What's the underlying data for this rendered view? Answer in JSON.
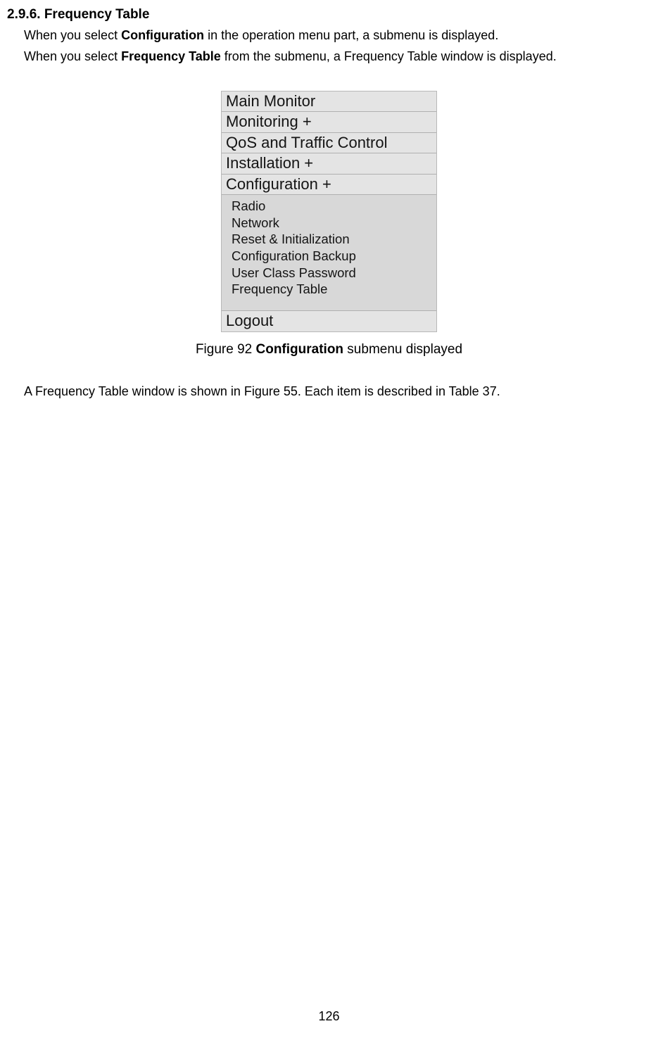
{
  "section": {
    "heading": "2.9.6. Frequency Table",
    "line1_pre": "When you select ",
    "line1_bold": "Configuration",
    "line1_post": " in the operation menu part, a submenu is displayed.",
    "line2_pre": "When you select ",
    "line2_bold": "Frequency Table",
    "line2_post": " from the submenu, a Frequency Table window is displayed."
  },
  "menu": {
    "items_top": [
      "Main Monitor",
      "Monitoring +",
      "QoS and Traffic Control",
      "Installation +",
      "Configuration +"
    ],
    "submenu": [
      "Radio",
      "Network",
      "Reset & Initialization",
      "Configuration Backup",
      "User Class Password",
      "Frequency Table"
    ],
    "logout": "Logout"
  },
  "caption": {
    "pre": "Figure 92 ",
    "bold": "Configuration",
    "post": " submenu displayed"
  },
  "follow": "A Frequency Table window is shown in Figure 55. Each item is described in Table 37.",
  "page_number": "126",
  "colors": {
    "menu_bg": "#e4e4e4",
    "submenu_bg": "#d8d8d8",
    "border": "#b8b8b8",
    "text": "#141414",
    "page_bg": "#ffffff"
  },
  "typography": {
    "heading_fontsize": 19,
    "body_fontsize": 18,
    "menu_fontsize": 22,
    "submenu_fontsize": 18.5,
    "caption_fontsize": 19
  }
}
